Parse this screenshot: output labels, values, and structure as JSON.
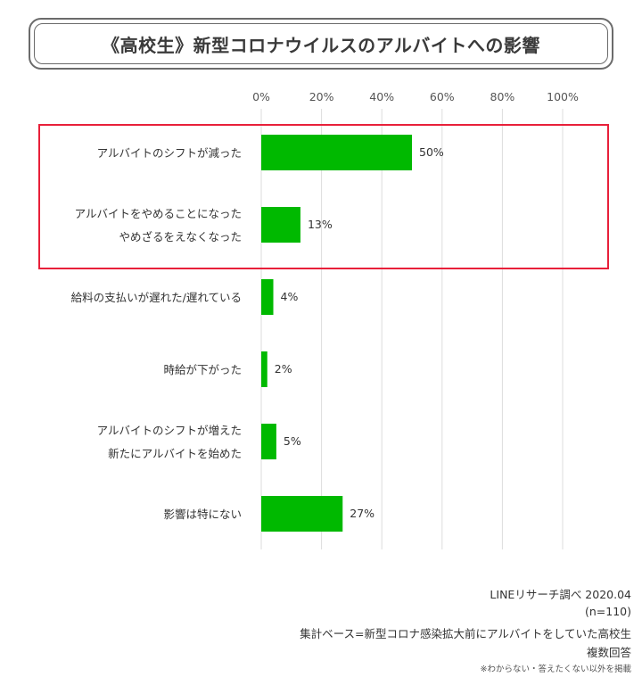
{
  "title": "《高校生》新型コロナウイルスのアルバイトへの影響",
  "chart_data": {
    "type": "bar",
    "orientation": "horizontal",
    "categories": [
      [
        "アルバイトのシフトが減った"
      ],
      [
        "アルバイトをやめることになった",
        "やめざるをえなくなった"
      ],
      [
        "給料の支払いが遅れた/遅れている"
      ],
      [
        "時給が下がった"
      ],
      [
        "アルバイトのシフトが増えた",
        "新たにアルバイトを始めた"
      ],
      [
        "影響は特にない"
      ]
    ],
    "values": [
      50,
      13,
      4,
      2,
      5,
      27
    ],
    "data_labels": [
      "50%",
      "13%",
      "4%",
      "2%",
      "5%",
      "27%"
    ],
    "xlim": [
      0,
      100
    ],
    "x_ticks": [
      "0%",
      "20%",
      "40%",
      "60%",
      "80%",
      "100%"
    ],
    "grid": true,
    "highlighted_categories": [
      0,
      1
    ],
    "colors": {
      "bar": "#00b900",
      "grid": "#dddddd",
      "highlight_box": "#e8203a"
    }
  },
  "footer": {
    "source": "LINEリサーチ調べ 2020.04",
    "n": "(n=110)",
    "base": "集計ベース=新型コロナ感染拡大前にアルバイトをしていた高校生",
    "answer_type": "複数回答",
    "note": "※わからない・答えたくない以外を掲載"
  }
}
